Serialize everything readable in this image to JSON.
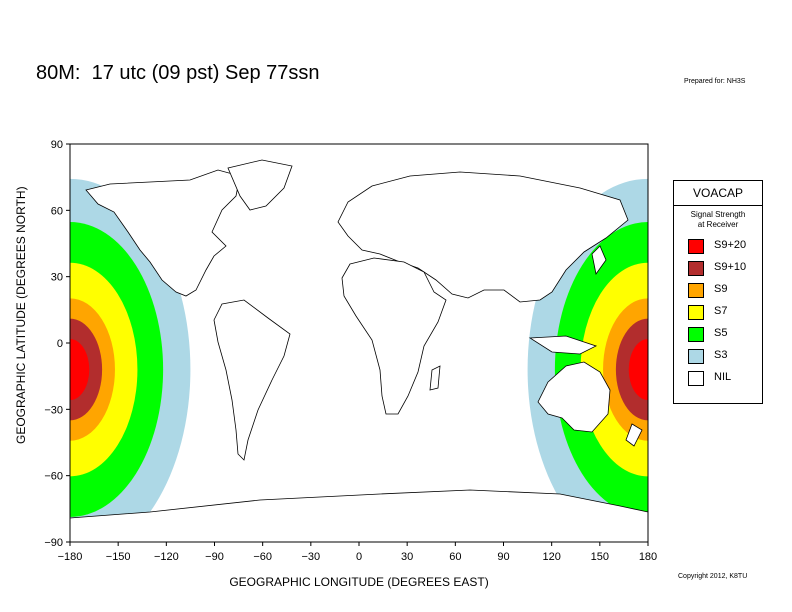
{
  "header": {
    "title": "80M:  17 utc (09 pst) Sep 77ssn",
    "prepared": "Prepared for: NH3S",
    "copyright": "Copyright 2012, K8TU"
  },
  "axes": {
    "ylabel": "GEOGRAPHIC LATITUDE (DEGREES NORTH)",
    "xlabel": "GEOGRAPHIC LONGITUDE (DEGREES EAST)",
    "yticks": [
      "90",
      "60",
      "30",
      "0",
      "−30",
      "−60",
      "−90"
    ],
    "xticks": [
      "−180",
      "−150",
      "−120",
      "−90",
      "−60",
      "−30",
      "0",
      "30",
      "60",
      "90",
      "120",
      "150",
      "180"
    ],
    "lon_range": [
      -180,
      180
    ],
    "lat_range": [
      -90,
      90
    ]
  },
  "legend": {
    "title": "VOACAP",
    "subtitle_line1": "Signal Strength",
    "subtitle_line2": "at Receiver",
    "items": [
      {
        "label": "S9+20",
        "color": "#ff0000"
      },
      {
        "label": "S9+10",
        "color": "#b22d2d"
      },
      {
        "label": "S9",
        "color": "#ffa500"
      },
      {
        "label": "S7",
        "color": "#ffff00"
      },
      {
        "label": "S5",
        "color": "#00ff00"
      },
      {
        "label": "S3",
        "color": "#add8e6"
      },
      {
        "label": "NIL",
        "color": "#ffffff"
      }
    ]
  },
  "coverage": {
    "center_lon": 180,
    "center_lat": -12,
    "bands_outer_to_inner": [
      {
        "level": "S3",
        "color": "#add8e6",
        "radius_deg": 75
      },
      {
        "level": "S5",
        "color": "#00ff00",
        "radius_deg": 58
      },
      {
        "level": "S7",
        "color": "#ffff00",
        "radius_deg": 42
      },
      {
        "level": "S9",
        "color": "#ffa500",
        "radius_deg": 28
      },
      {
        "level": "S9+10",
        "color": "#b22d2d",
        "radius_deg": 20
      },
      {
        "level": "S9+20",
        "color": "#ff0000",
        "radius_deg": 12
      }
    ]
  }
}
